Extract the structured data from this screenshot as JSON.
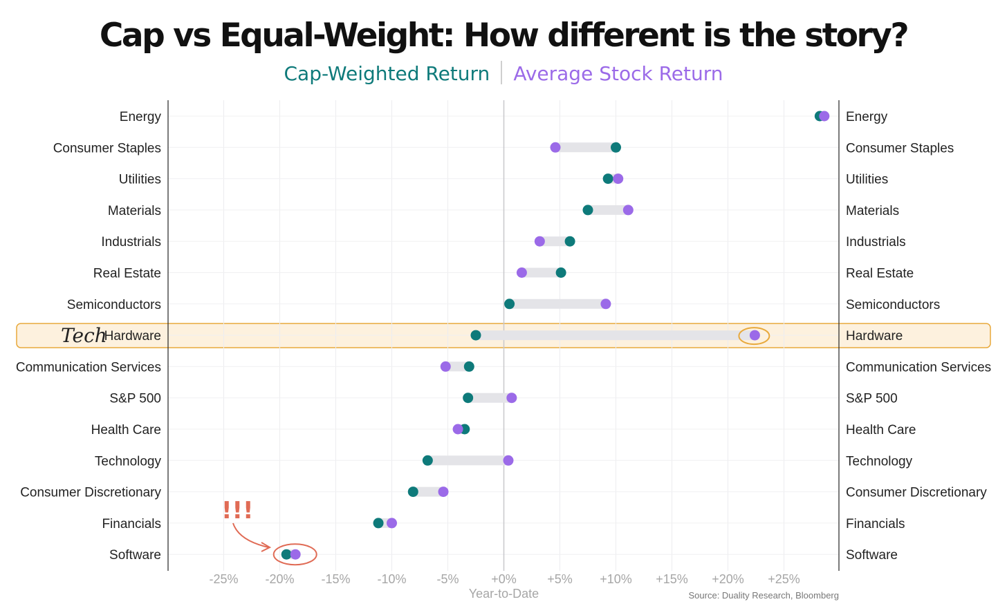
{
  "chart_data": {
    "type": "dumbbell",
    "title": "Cap vs Equal-Weight: How different is the story?",
    "legend": [
      {
        "name": "Cap-Weighted Return",
        "color": "#0e7a7a"
      },
      {
        "name": "Average Stock Return",
        "color": "#9b6ae8"
      }
    ],
    "legend_separator": "|",
    "xlabel": "Year-to-Date",
    "xlim": [
      -30,
      30
    ],
    "xticks": [
      -25,
      -20,
      -15,
      -10,
      -5,
      0,
      5,
      10,
      15,
      20,
      25
    ],
    "xtick_labels": [
      "-25%",
      "-20%",
      "-15%",
      "-10%",
      "-5%",
      "+0%",
      "+5%",
      "+10%",
      "+15%",
      "+20%",
      "+25%"
    ],
    "grid": true,
    "source": "Source: Duality Research, Bloomberg",
    "categories": [
      "Energy",
      "Consumer Staples",
      "Utilities",
      "Materials",
      "Industrials",
      "Real Estate",
      "Semiconductors",
      "Hardware",
      "Communication Services",
      "S&P 500",
      "Health Care",
      "Technology",
      "Consumer Discretionary",
      "Financials",
      "Software"
    ],
    "series": [
      {
        "name": "Cap-Weighted Return",
        "values": [
          28.2,
          10.0,
          9.3,
          7.5,
          5.9,
          5.1,
          0.5,
          -2.5,
          -3.1,
          -3.2,
          -3.5,
          -6.8,
          -8.1,
          -11.2,
          -19.4
        ]
      },
      {
        "name": "Average Stock Return",
        "values": [
          28.6,
          4.6,
          10.2,
          11.1,
          3.2,
          1.6,
          9.1,
          22.4,
          -5.2,
          0.7,
          -4.1,
          0.4,
          -5.4,
          -10.0,
          -18.6
        ]
      }
    ],
    "highlight": {
      "category": "Hardware",
      "annotation": "Tech"
    },
    "callout": {
      "category": "Software",
      "annotation": "!!!"
    }
  },
  "colors": {
    "cap": "#0e7a7a",
    "avg": "#9b6ae8",
    "bar": "#e4e4e8",
    "highlight_fill": "#fdf1de",
    "highlight_stroke": "#e8a93c",
    "callout": "#e06b55"
  }
}
